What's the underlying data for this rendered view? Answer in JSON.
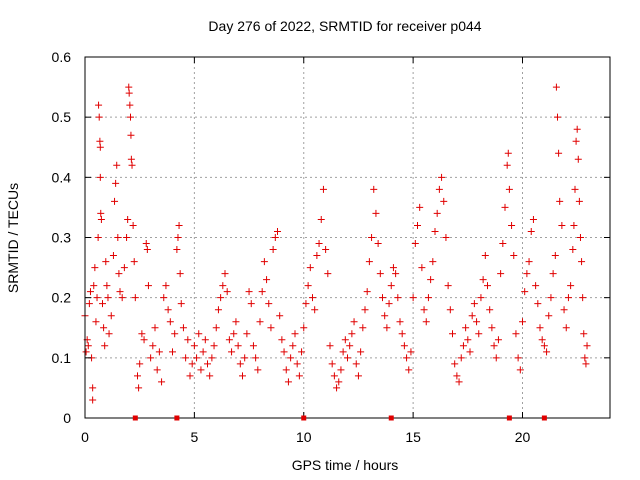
{
  "chart_data": {
    "type": "scatter",
    "title": "Day 276 of 2022, SRMTID for receiver p044",
    "xlabel": "GPS time / hours",
    "ylabel": "SRMTID / TECUs",
    "xlim": [
      0,
      24
    ],
    "ylim": [
      0,
      0.6
    ],
    "x_ticks": [
      0,
      5,
      10,
      15,
      20
    ],
    "x_tick_labels": [
      "0",
      "5",
      "10",
      "15",
      "20"
    ],
    "y_ticks": [
      0,
      0.1,
      0.2,
      0.3,
      0.4,
      0.5,
      0.6
    ],
    "y_tick_labels": [
      "0",
      "0.1",
      "0.2",
      "0.3",
      "0.4",
      "0.5",
      "0.6"
    ],
    "grid": true,
    "marker": "+",
    "color": "#e00000",
    "zero_markers": [
      2.3,
      4.2,
      10.0,
      14.0,
      19.4,
      21.0
    ],
    "series": [
      {
        "name": "SRMTID",
        "points": [
          [
            0.0,
            0.17
          ],
          [
            0.05,
            0.11
          ],
          [
            0.1,
            0.13
          ],
          [
            0.15,
            0.12
          ],
          [
            0.2,
            0.19
          ],
          [
            0.25,
            0.21
          ],
          [
            0.3,
            0.1
          ],
          [
            0.35,
            0.05
          ],
          [
            0.35,
            0.03
          ],
          [
            0.4,
            0.22
          ],
          [
            0.45,
            0.25
          ],
          [
            0.5,
            0.16
          ],
          [
            0.55,
            0.2
          ],
          [
            0.6,
            0.3
          ],
          [
            0.62,
            0.52
          ],
          [
            0.65,
            0.5
          ],
          [
            0.68,
            0.46
          ],
          [
            0.7,
            0.45
          ],
          [
            0.7,
            0.4
          ],
          [
            0.72,
            0.34
          ],
          [
            0.75,
            0.33
          ],
          [
            0.8,
            0.19
          ],
          [
            0.85,
            0.15
          ],
          [
            0.9,
            0.12
          ],
          [
            0.95,
            0.26
          ],
          [
            1.0,
            0.22
          ],
          [
            1.05,
            0.2
          ],
          [
            1.1,
            0.14
          ],
          [
            1.2,
            0.17
          ],
          [
            1.3,
            0.27
          ],
          [
            1.35,
            0.36
          ],
          [
            1.4,
            0.39
          ],
          [
            1.45,
            0.42
          ],
          [
            1.5,
            0.3
          ],
          [
            1.55,
            0.24
          ],
          [
            1.6,
            0.21
          ],
          [
            1.7,
            0.2
          ],
          [
            1.8,
            0.25
          ],
          [
            1.9,
            0.3
          ],
          [
            1.95,
            0.33
          ],
          [
            2.0,
            0.55
          ],
          [
            2.02,
            0.54
          ],
          [
            2.05,
            0.52
          ],
          [
            2.08,
            0.5
          ],
          [
            2.1,
            0.47
          ],
          [
            2.12,
            0.43
          ],
          [
            2.15,
            0.42
          ],
          [
            2.2,
            0.32
          ],
          [
            2.25,
            0.26
          ],
          [
            2.3,
            0.2
          ],
          [
            2.4,
            0.07
          ],
          [
            2.45,
            0.05
          ],
          [
            2.5,
            0.09
          ],
          [
            2.6,
            0.14
          ],
          [
            2.7,
            0.13
          ],
          [
            2.8,
            0.29
          ],
          [
            2.85,
            0.28
          ],
          [
            2.9,
            0.22
          ],
          [
            3.0,
            0.1
          ],
          [
            3.1,
            0.12
          ],
          [
            3.2,
            0.15
          ],
          [
            3.3,
            0.08
          ],
          [
            3.4,
            0.11
          ],
          [
            3.5,
            0.06
          ],
          [
            3.6,
            0.2
          ],
          [
            3.7,
            0.22
          ],
          [
            3.8,
            0.18
          ],
          [
            3.9,
            0.16
          ],
          [
            4.0,
            0.11
          ],
          [
            4.1,
            0.14
          ],
          [
            4.2,
            0.28
          ],
          [
            4.25,
            0.3
          ],
          [
            4.3,
            0.32
          ],
          [
            4.35,
            0.24
          ],
          [
            4.4,
            0.19
          ],
          [
            4.5,
            0.15
          ],
          [
            4.6,
            0.1
          ],
          [
            4.7,
            0.13
          ],
          [
            4.8,
            0.07
          ],
          [
            4.9,
            0.09
          ],
          [
            5.0,
            0.12
          ],
          [
            5.1,
            0.1
          ],
          [
            5.2,
            0.14
          ],
          [
            5.3,
            0.08
          ],
          [
            5.4,
            0.11
          ],
          [
            5.5,
            0.13
          ],
          [
            5.6,
            0.09
          ],
          [
            5.7,
            0.07
          ],
          [
            5.8,
            0.1
          ],
          [
            5.9,
            0.12
          ],
          [
            6.0,
            0.15
          ],
          [
            6.1,
            0.18
          ],
          [
            6.2,
            0.2
          ],
          [
            6.3,
            0.22
          ],
          [
            6.4,
            0.24
          ],
          [
            6.5,
            0.21
          ],
          [
            6.6,
            0.13
          ],
          [
            6.7,
            0.11
          ],
          [
            6.8,
            0.14
          ],
          [
            6.9,
            0.16
          ],
          [
            7.0,
            0.12
          ],
          [
            7.1,
            0.09
          ],
          [
            7.2,
            0.07
          ],
          [
            7.3,
            0.1
          ],
          [
            7.4,
            0.14
          ],
          [
            7.5,
            0.21
          ],
          [
            7.6,
            0.19
          ],
          [
            7.7,
            0.12
          ],
          [
            7.8,
            0.1
          ],
          [
            7.9,
            0.08
          ],
          [
            8.0,
            0.16
          ],
          [
            8.1,
            0.21
          ],
          [
            8.2,
            0.26
          ],
          [
            8.3,
            0.23
          ],
          [
            8.4,
            0.19
          ],
          [
            8.5,
            0.15
          ],
          [
            8.6,
            0.28
          ],
          [
            8.7,
            0.3
          ],
          [
            8.8,
            0.31
          ],
          [
            8.9,
            0.17
          ],
          [
            9.0,
            0.13
          ],
          [
            9.1,
            0.11
          ],
          [
            9.2,
            0.08
          ],
          [
            9.3,
            0.06
          ],
          [
            9.4,
            0.1
          ],
          [
            9.5,
            0.12
          ],
          [
            9.6,
            0.14
          ],
          [
            9.7,
            0.09
          ],
          [
            9.8,
            0.07
          ],
          [
            9.9,
            0.11
          ],
          [
            10.0,
            0.15
          ],
          [
            10.1,
            0.19
          ],
          [
            10.2,
            0.22
          ],
          [
            10.3,
            0.25
          ],
          [
            10.4,
            0.2
          ],
          [
            10.5,
            0.18
          ],
          [
            10.6,
            0.27
          ],
          [
            10.7,
            0.29
          ],
          [
            10.8,
            0.33
          ],
          [
            10.9,
            0.38
          ],
          [
            11.0,
            0.28
          ],
          [
            11.1,
            0.24
          ],
          [
            11.2,
            0.12
          ],
          [
            11.3,
            0.09
          ],
          [
            11.4,
            0.07
          ],
          [
            11.5,
            0.05
          ],
          [
            11.6,
            0.06
          ],
          [
            11.7,
            0.08
          ],
          [
            11.8,
            0.11
          ],
          [
            11.9,
            0.13
          ],
          [
            12.0,
            0.1
          ],
          [
            12.1,
            0.12
          ],
          [
            12.2,
            0.14
          ],
          [
            12.3,
            0.16
          ],
          [
            12.4,
            0.09
          ],
          [
            12.5,
            0.07
          ],
          [
            12.6,
            0.11
          ],
          [
            12.7,
            0.15
          ],
          [
            12.8,
            0.18
          ],
          [
            12.9,
            0.21
          ],
          [
            13.0,
            0.26
          ],
          [
            13.1,
            0.3
          ],
          [
            13.2,
            0.38
          ],
          [
            13.3,
            0.34
          ],
          [
            13.4,
            0.29
          ],
          [
            13.5,
            0.24
          ],
          [
            13.6,
            0.2
          ],
          [
            13.7,
            0.17
          ],
          [
            13.8,
            0.15
          ],
          [
            13.9,
            0.19
          ],
          [
            14.0,
            0.22
          ],
          [
            14.1,
            0.25
          ],
          [
            14.2,
            0.24
          ],
          [
            14.3,
            0.2
          ],
          [
            14.4,
            0.16
          ],
          [
            14.5,
            0.14
          ],
          [
            14.6,
            0.12
          ],
          [
            14.7,
            0.1
          ],
          [
            14.8,
            0.08
          ],
          [
            14.9,
            0.11
          ],
          [
            15.0,
            0.2
          ],
          [
            15.1,
            0.29
          ],
          [
            15.2,
            0.32
          ],
          [
            15.3,
            0.35
          ],
          [
            15.4,
            0.25
          ],
          [
            15.5,
            0.18
          ],
          [
            15.6,
            0.16
          ],
          [
            15.7,
            0.2
          ],
          [
            15.8,
            0.23
          ],
          [
            15.9,
            0.26
          ],
          [
            16.0,
            0.31
          ],
          [
            16.1,
            0.34
          ],
          [
            16.2,
            0.38
          ],
          [
            16.3,
            0.4
          ],
          [
            16.4,
            0.36
          ],
          [
            16.5,
            0.3
          ],
          [
            16.6,
            0.22
          ],
          [
            16.7,
            0.18
          ],
          [
            16.8,
            0.14
          ],
          [
            16.9,
            0.09
          ],
          [
            17.0,
            0.07
          ],
          [
            17.1,
            0.06
          ],
          [
            17.2,
            0.1
          ],
          [
            17.3,
            0.12
          ],
          [
            17.4,
            0.15
          ],
          [
            17.5,
            0.13
          ],
          [
            17.6,
            0.11
          ],
          [
            17.7,
            0.17
          ],
          [
            17.8,
            0.19
          ],
          [
            17.9,
            0.16
          ],
          [
            18.0,
            0.14
          ],
          [
            18.1,
            0.2
          ],
          [
            18.2,
            0.23
          ],
          [
            18.3,
            0.27
          ],
          [
            18.4,
            0.22
          ],
          [
            18.5,
            0.18
          ],
          [
            18.6,
            0.15
          ],
          [
            18.7,
            0.12
          ],
          [
            18.8,
            0.1
          ],
          [
            18.9,
            0.13
          ],
          [
            19.0,
            0.24
          ],
          [
            19.1,
            0.29
          ],
          [
            19.2,
            0.35
          ],
          [
            19.3,
            0.42
          ],
          [
            19.35,
            0.44
          ],
          [
            19.4,
            0.38
          ],
          [
            19.5,
            0.32
          ],
          [
            19.6,
            0.27
          ],
          [
            19.7,
            0.14
          ],
          [
            19.8,
            0.1
          ],
          [
            19.9,
            0.08
          ],
          [
            20.0,
            0.16
          ],
          [
            20.1,
            0.21
          ],
          [
            20.2,
            0.24
          ],
          [
            20.3,
            0.26
          ],
          [
            20.4,
            0.31
          ],
          [
            20.5,
            0.33
          ],
          [
            20.6,
            0.22
          ],
          [
            20.7,
            0.19
          ],
          [
            20.8,
            0.15
          ],
          [
            20.9,
            0.13
          ],
          [
            21.0,
            0.12
          ],
          [
            21.1,
            0.11
          ],
          [
            21.2,
            0.17
          ],
          [
            21.3,
            0.2
          ],
          [
            21.4,
            0.24
          ],
          [
            21.5,
            0.27
          ],
          [
            21.55,
            0.55
          ],
          [
            21.6,
            0.5
          ],
          [
            21.65,
            0.44
          ],
          [
            21.7,
            0.36
          ],
          [
            21.8,
            0.32
          ],
          [
            21.9,
            0.18
          ],
          [
            22.0,
            0.15
          ],
          [
            22.1,
            0.2
          ],
          [
            22.2,
            0.22
          ],
          [
            22.3,
            0.28
          ],
          [
            22.35,
            0.32
          ],
          [
            22.4,
            0.38
          ],
          [
            22.45,
            0.46
          ],
          [
            22.5,
            0.48
          ],
          [
            22.55,
            0.43
          ],
          [
            22.6,
            0.36
          ],
          [
            22.65,
            0.3
          ],
          [
            22.7,
            0.26
          ],
          [
            22.75,
            0.2
          ],
          [
            22.8,
            0.14
          ],
          [
            22.85,
            0.1
          ],
          [
            22.9,
            0.09
          ],
          [
            22.95,
            0.12
          ]
        ]
      }
    ]
  }
}
